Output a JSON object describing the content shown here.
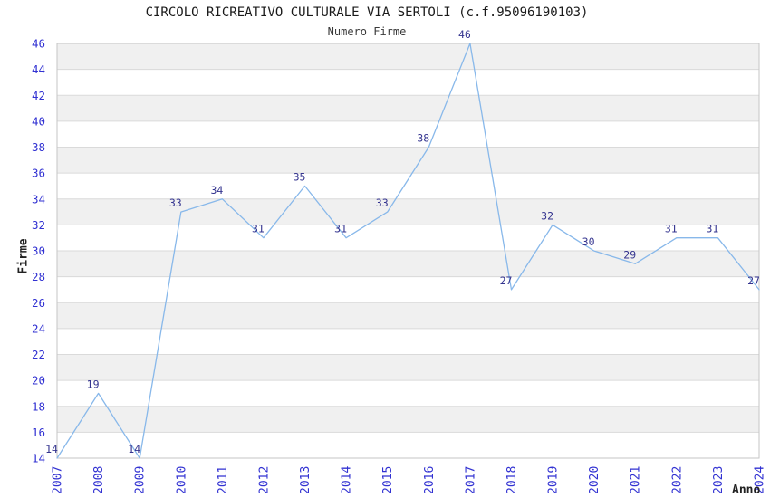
{
  "chart_data": {
    "type": "line",
    "title": "CIRCOLO RICREATIVO CULTURALE VIA SERTOLI (c.f.95096190103)",
    "subtitle": "Numero Firme",
    "xlabel": "Anno",
    "ylabel": "Firme",
    "x": [
      "2007",
      "2008",
      "2009",
      "2010",
      "2011",
      "2012",
      "2013",
      "2014",
      "2015",
      "2016",
      "2017",
      "2018",
      "2019",
      "2020",
      "2021",
      "2022",
      "2023",
      "2024"
    ],
    "series": [
      {
        "name": "Numero Firme",
        "values": [
          14,
          19,
          14,
          33,
          34,
          31,
          35,
          31,
          33,
          38,
          46,
          27,
          32,
          30,
          29,
          31,
          31,
          27
        ]
      }
    ],
    "ylim": [
      14,
      46
    ],
    "ytick_step": 2,
    "legend": "none",
    "grid": "horizontal-gridlines-with-alternating-bands",
    "markers": "none",
    "point_labels": "shown-above-points",
    "colors": {
      "line": "#88b8ea",
      "tick_label": "#3232d2",
      "point_label": "#34348f",
      "band": "#f0f0f0",
      "gridline": "#dadada",
      "plot_border": "#c6c6c6",
      "title": "#1a1a1a",
      "subtitle": "#3a3a3a",
      "axis_title": "#222222",
      "background": "#ffffff"
    }
  }
}
